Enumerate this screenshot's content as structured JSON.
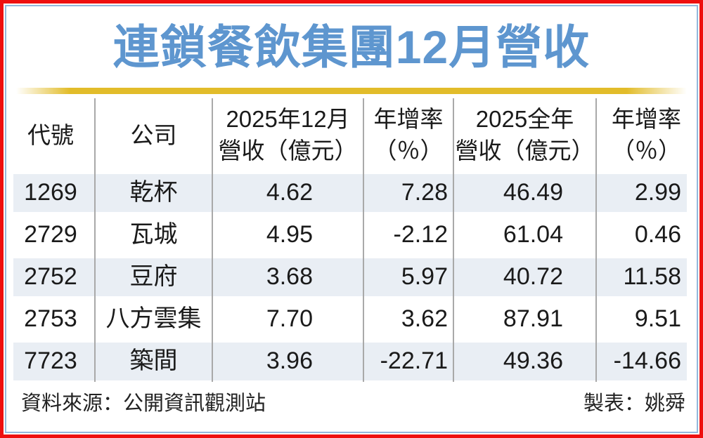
{
  "title": "連鎖餐飲集團12月營收",
  "colors": {
    "title_blue": "#5e96cf",
    "border_red": "#ee0f0f",
    "border_blue": "#92b7dd",
    "gold_divider": "#e2bc2a",
    "row_shade": "#e9eef4",
    "separator_gray": "#a9a9a9"
  },
  "table": {
    "columns": [
      {
        "label": "代號"
      },
      {
        "label": "公司"
      },
      {
        "line1": "2025年12月",
        "line2": "營收（億元）"
      },
      {
        "line1": "年增率",
        "line2": "（％）"
      },
      {
        "line1": "2025全年",
        "line2": "營收（億元）"
      },
      {
        "line1": "年增率",
        "line2": "（％）"
      }
    ],
    "rows": [
      {
        "code": "1269",
        "company": "乾杯",
        "dec_revenue": "4.62",
        "dec_yoy": "7.28",
        "year_revenue": "46.49",
        "year_yoy": "2.99"
      },
      {
        "code": "2729",
        "company": "瓦城",
        "dec_revenue": "4.95",
        "dec_yoy": "-2.12",
        "year_revenue": "61.04",
        "year_yoy": "0.46"
      },
      {
        "code": "2752",
        "company": "豆府",
        "dec_revenue": "3.68",
        "dec_yoy": "5.97",
        "year_revenue": "40.72",
        "year_yoy": "11.58"
      },
      {
        "code": "2753",
        "company": "八方雲集",
        "dec_revenue": "7.70",
        "dec_yoy": "3.62",
        "year_revenue": "87.91",
        "year_yoy": "9.51"
      },
      {
        "code": "7723",
        "company": "築間",
        "dec_revenue": "3.96",
        "dec_yoy": "-22.71",
        "year_revenue": "49.36",
        "year_yoy": "-14.66"
      }
    ]
  },
  "footer": {
    "source": "資料來源：公開資訊觀測站",
    "credit": "製表：姚舜"
  },
  "chart_data": {
    "type": "table",
    "title": "連鎖餐飲集團12月營收",
    "columns": [
      "代號",
      "公司",
      "2025年12月營收（億元）",
      "年增率（％）",
      "2025全年營收（億元）",
      "年增率（％）"
    ],
    "rows": [
      [
        "1269",
        "乾杯",
        4.62,
        7.28,
        46.49,
        2.99
      ],
      [
        "2729",
        "瓦城",
        4.95,
        -2.12,
        61.04,
        0.46
      ],
      [
        "2752",
        "豆府",
        3.68,
        5.97,
        40.72,
        11.58
      ],
      [
        "2753",
        "八方雲集",
        7.7,
        3.62,
        87.91,
        9.51
      ],
      [
        "7723",
        "築間",
        3.96,
        -22.71,
        49.36,
        -14.66
      ]
    ],
    "source": "公開資訊觀測站",
    "credit": "姚舜"
  }
}
